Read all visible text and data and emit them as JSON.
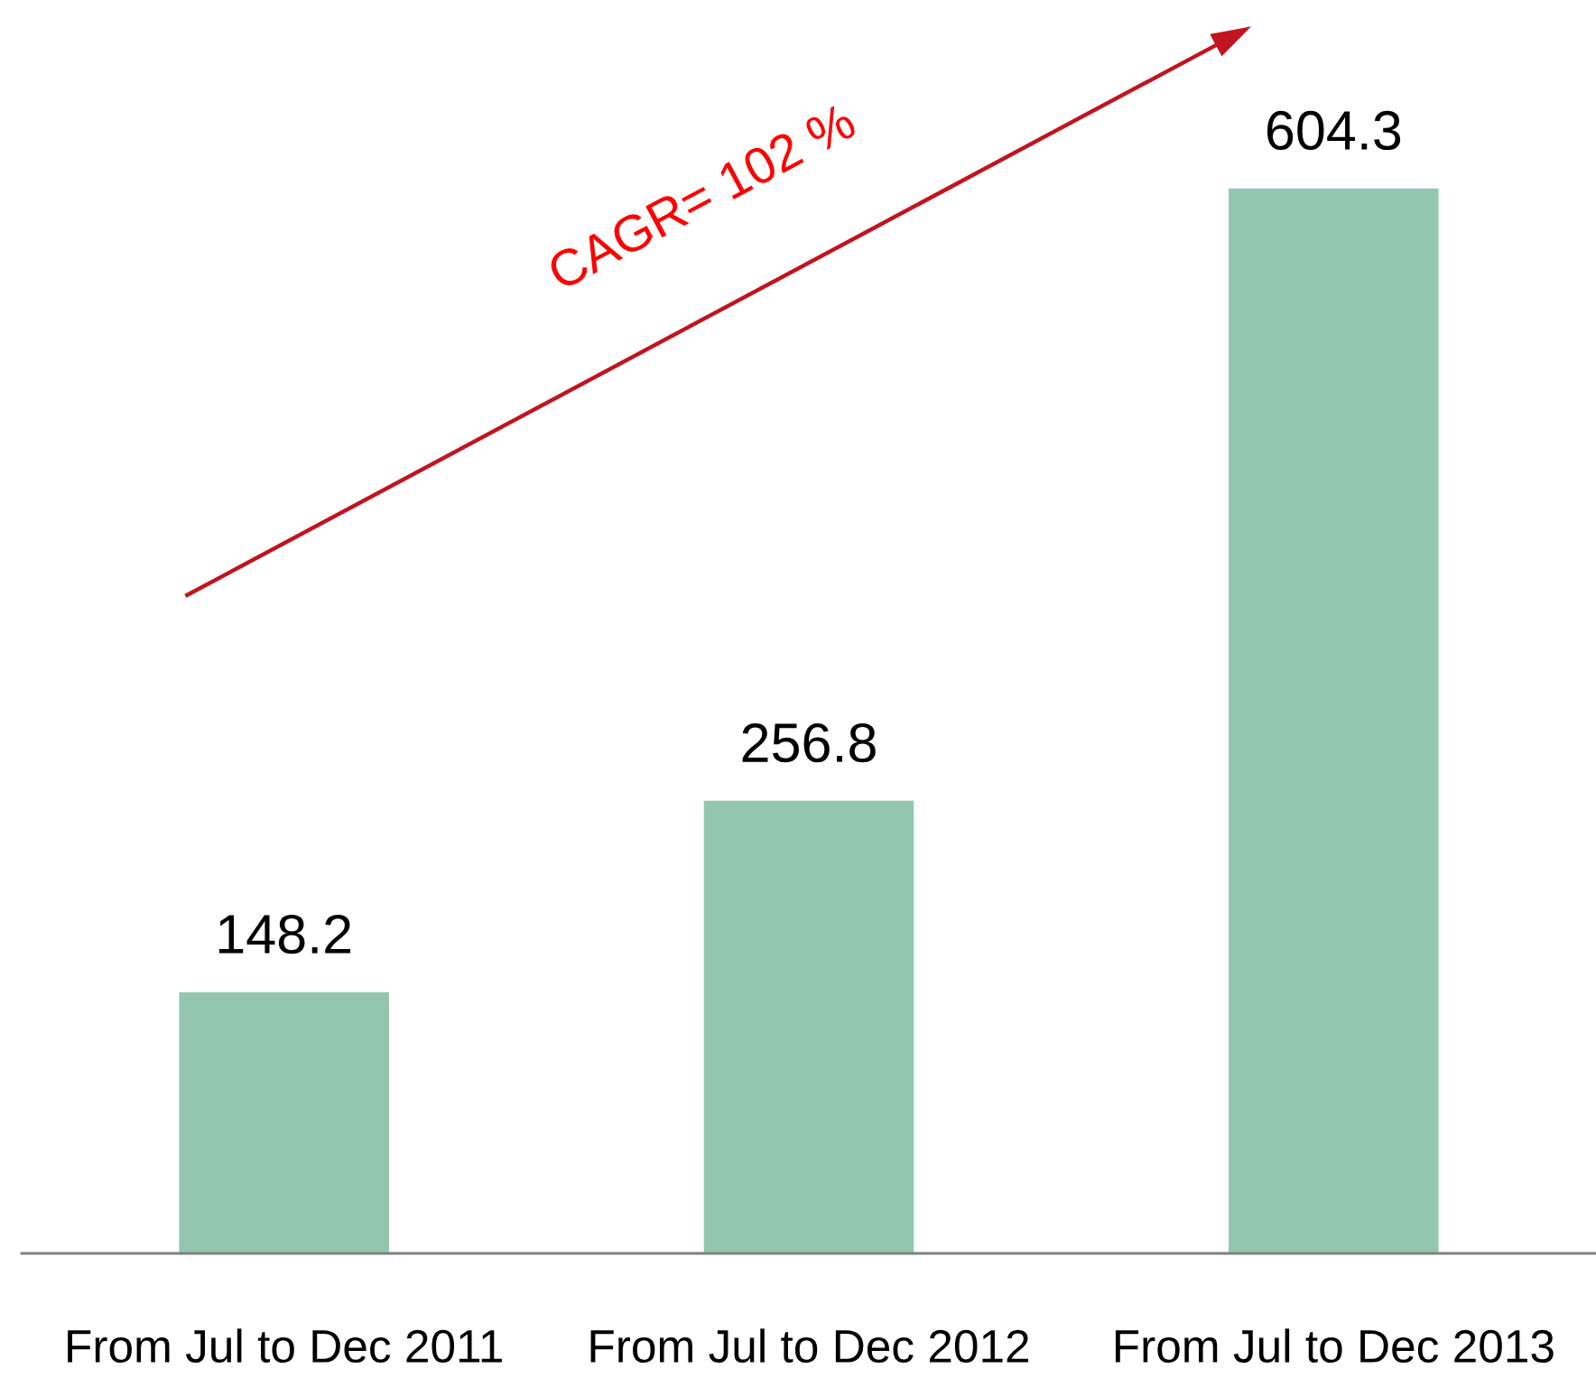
{
  "chart_data": {
    "type": "bar",
    "categories": [
      "From Jul to Dec 2011",
      "From Jul to Dec 2012",
      "From Jul to Dec 2013"
    ],
    "values": [
      148.2,
      256.8,
      604.3
    ],
    "color": "#93c6af",
    "data_labels": true,
    "tick_labels": "x",
    "grid": false,
    "legend": false,
    "annotations": [
      "CAGR= 102 %"
    ]
  }
}
